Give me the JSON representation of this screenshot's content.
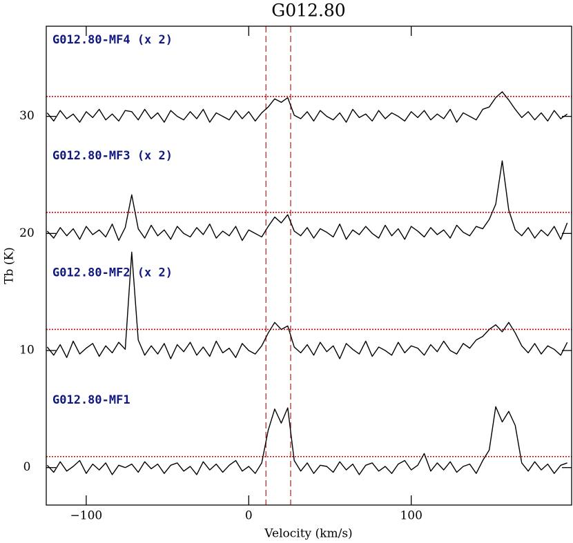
{
  "chart_data": {
    "type": "line",
    "title": "G012.80",
    "x_label": "Velocity (km/s)",
    "y_label": "Tb (K)",
    "xlim": [
      -124.6,
      198.7
    ],
    "ylim": [
      -3.2,
      37.7
    ],
    "xticks": [
      {
        "value": -100,
        "label": "−100"
      },
      0,
      100
    ],
    "yticks": [
      0,
      10,
      20,
      30
    ],
    "vlines": [
      10.6,
      25.8
    ],
    "vline_color": "#b03030",
    "level_color": "#e00000",
    "x": [
      -124,
      -120,
      -116,
      -112,
      -108,
      -104,
      -100,
      -96,
      -92,
      -88,
      -84,
      -80,
      -76,
      -72,
      -68,
      -64,
      -60,
      -56,
      -52,
      -48,
      -44,
      -40,
      -36,
      -32,
      -28,
      -24,
      -20,
      -16,
      -12,
      -8,
      -4,
      0,
      4,
      8,
      12,
      16,
      20,
      24,
      28,
      32,
      36,
      40,
      44,
      48,
      52,
      56,
      60,
      64,
      68,
      72,
      76,
      80,
      84,
      88,
      92,
      96,
      100,
      104,
      108,
      112,
      116,
      120,
      124,
      128,
      132,
      136,
      140,
      144,
      148,
      152,
      156,
      160,
      164,
      168,
      172,
      176,
      180,
      184,
      188,
      192,
      196
    ],
    "series": [
      {
        "name": "G012.80-MF1",
        "color": "#000000",
        "level": 0.94,
        "values": [
          0.2,
          -0.4,
          0.5,
          -0.3,
          0.1,
          0.6,
          -0.5,
          0.3,
          -0.2,
          0.4,
          -0.6,
          0.2,
          0.0,
          0.3,
          -0.4,
          0.5,
          -0.1,
          0.3,
          -0.5,
          0.2,
          0.4,
          -0.3,
          0.1,
          -0.6,
          0.5,
          -0.2,
          0.3,
          -0.4,
          0.2,
          0.6,
          -0.3,
          0.1,
          -0.5,
          0.4,
          3.2,
          5.0,
          3.8,
          5.1,
          0.6,
          -0.3,
          0.4,
          -0.5,
          0.2,
          0.1,
          -0.4,
          0.5,
          -0.2,
          0.3,
          -0.6,
          0.2,
          0.4,
          -0.3,
          0.1,
          -0.5,
          0.3,
          0.6,
          -0.2,
          0.2,
          1.2,
          -0.3,
          0.4,
          -0.2,
          0.5,
          -0.4,
          0.1,
          0.3,
          -0.5,
          0.6,
          1.5,
          5.2,
          3.9,
          4.8,
          3.6,
          0.4,
          -0.3,
          0.5,
          -0.2,
          0.3,
          -0.5,
          0.2,
          0.4
        ]
      },
      {
        "name": "G012.80-MF2 (x 2)",
        "color": "#000000",
        "level": 11.8,
        "values": [
          10.3,
          9.6,
          10.5,
          9.4,
          10.8,
          9.7,
          10.2,
          10.6,
          9.5,
          10.4,
          9.8,
          10.7,
          10.1,
          18.4,
          10.9,
          9.6,
          10.4,
          9.7,
          10.6,
          9.3,
          10.5,
          9.9,
          10.7,
          9.6,
          10.3,
          9.5,
          10.8,
          9.8,
          10.2,
          9.4,
          10.6,
          10.0,
          9.7,
          10.4,
          11.5,
          12.4,
          11.8,
          12.1,
          10.3,
          9.8,
          10.5,
          9.6,
          10.7,
          9.9,
          10.4,
          9.3,
          10.6,
          10.1,
          9.7,
          10.8,
          9.5,
          10.3,
          10.0,
          9.6,
          10.7,
          9.8,
          10.4,
          10.2,
          9.6,
          10.5,
          9.9,
          10.8,
          10.0,
          9.7,
          10.6,
          10.2,
          10.9,
          11.2,
          11.8,
          12.2,
          11.6,
          12.4,
          11.5,
          10.4,
          9.8,
          10.6,
          9.7,
          10.4,
          10.1,
          9.6,
          10.7
        ]
      },
      {
        "name": "G012.80-MF3 (x 2)",
        "color": "#000000",
        "level": 21.8,
        "values": [
          20.2,
          19.6,
          20.5,
          19.8,
          20.4,
          19.5,
          20.6,
          19.9,
          20.3,
          19.7,
          20.8,
          19.4,
          20.5,
          23.3,
          20.4,
          19.6,
          20.7,
          19.8,
          20.3,
          19.5,
          20.6,
          20.0,
          19.7,
          20.5,
          19.9,
          20.8,
          19.6,
          20.2,
          19.8,
          20.6,
          19.4,
          20.3,
          20.0,
          19.7,
          20.6,
          21.4,
          20.9,
          21.6,
          20.2,
          19.8,
          20.5,
          19.6,
          20.4,
          20.1,
          19.7,
          20.8,
          19.5,
          20.3,
          19.9,
          20.6,
          20.0,
          19.6,
          20.7,
          19.8,
          20.4,
          19.5,
          20.6,
          20.2,
          19.7,
          20.5,
          19.9,
          20.3,
          19.6,
          20.7,
          20.1,
          19.8,
          20.6,
          20.4,
          21.2,
          22.5,
          26.2,
          22.0,
          20.3,
          19.8,
          20.5,
          19.6,
          20.3,
          19.8,
          20.6,
          19.5,
          20.9
        ]
      },
      {
        "name": "G012.80-MF4 (x 2)",
        "color": "#000000",
        "level": 31.7,
        "values": [
          30.3,
          29.6,
          30.5,
          29.8,
          30.2,
          29.5,
          30.4,
          29.9,
          30.6,
          29.7,
          30.2,
          29.6,
          30.5,
          30.4,
          29.7,
          30.6,
          29.8,
          30.3,
          29.5,
          30.5,
          30.0,
          29.7,
          30.4,
          29.8,
          30.6,
          29.5,
          30.3,
          30.0,
          29.7,
          30.5,
          29.8,
          30.4,
          29.6,
          30.3,
          30.8,
          31.5,
          31.2,
          31.6,
          30.1,
          29.8,
          30.4,
          29.6,
          30.5,
          30.0,
          29.7,
          30.3,
          29.5,
          30.6,
          29.9,
          30.2,
          29.6,
          30.5,
          29.8,
          30.3,
          30.0,
          29.6,
          30.4,
          29.9,
          30.5,
          29.7,
          30.2,
          29.8,
          30.6,
          29.5,
          30.3,
          30.0,
          29.7,
          30.6,
          30.8,
          31.6,
          32.1,
          31.4,
          30.6,
          29.9,
          30.4,
          29.7,
          30.3,
          29.6,
          30.5,
          29.8,
          30.2
        ]
      }
    ]
  }
}
